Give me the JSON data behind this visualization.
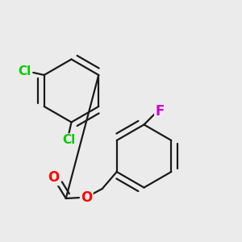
{
  "background_color": "#ebebeb",
  "bond_color": "#1a1a1a",
  "bond_width": 1.6,
  "dbo": 0.018,
  "atom_colors": {
    "O": "#ff0000",
    "Cl": "#00cc00",
    "F": "#cc00cc"
  },
  "fontsize_hetero": 11,
  "figsize": [
    3.0,
    3.0
  ],
  "dpi": 100
}
